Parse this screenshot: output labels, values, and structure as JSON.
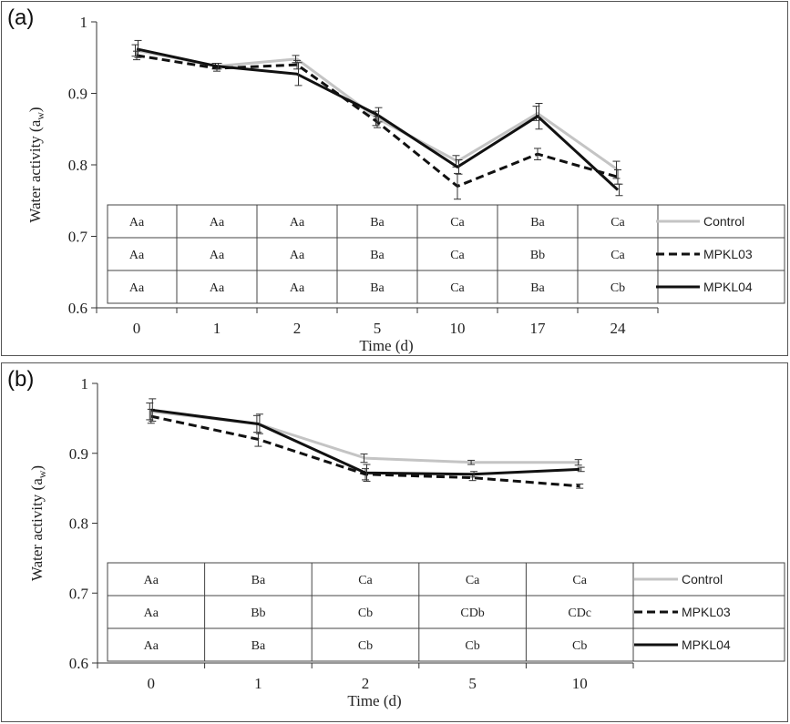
{
  "chart_data": [
    {
      "panel_label": "(a)",
      "type": "line",
      "xlabel": "Time (d)",
      "ylabel": "Water activity (a",
      "ylabel_sub": "w",
      "ylabel_end": ")",
      "categories": [
        "0",
        "1",
        "2",
        "5",
        "10",
        "17",
        "24"
      ],
      "ylim": [
        0.6,
        1.0
      ],
      "yticks": [
        "0.6",
        "0.7",
        "0.8",
        "0.9",
        "1"
      ],
      "series": [
        {
          "name": "Control",
          "color": "#c4c4c4",
          "dash": "solid",
          "values": [
            0.96,
            0.938,
            0.948,
            0.865,
            0.805,
            0.872,
            0.793
          ],
          "errors": [
            0.008,
            0.004,
            0.005,
            0.01,
            0.008,
            0.01,
            0.012
          ]
        },
        {
          "name": "MPKL03",
          "color": "#111111",
          "dash": "dashed",
          "values": [
            0.953,
            0.935,
            0.94,
            0.86,
            0.77,
            0.815,
            0.783
          ],
          "errors": [
            0.006,
            0.004,
            0.006,
            0.008,
            0.018,
            0.008,
            0.01
          ]
        },
        {
          "name": "MPKL04",
          "color": "#111111",
          "dash": "solid",
          "values": [
            0.962,
            0.938,
            0.927,
            0.87,
            0.797,
            0.868,
            0.765
          ],
          "errors": [
            0.012,
            0.004,
            0.016,
            0.01,
            0.01,
            0.018,
            0.008
          ]
        }
      ],
      "table": [
        [
          "Aa",
          "Aa",
          "Aa",
          "Ba",
          "Ca",
          "Ba",
          "Ca"
        ],
        [
          "Aa",
          "Aa",
          "Aa",
          "Ba",
          "Ca",
          "Bb",
          "Ca"
        ],
        [
          "Aa",
          "Aa",
          "Aa",
          "Ba",
          "Ca",
          "Ba",
          "Cb"
        ]
      ]
    },
    {
      "panel_label": "(b)",
      "type": "line",
      "xlabel": "Time (d)",
      "ylabel": "Water activity (a",
      "ylabel_sub": "w",
      "ylabel_end": ")",
      "categories": [
        "0",
        "1",
        "2",
        "5",
        "10"
      ],
      "ylim": [
        0.6,
        1.0
      ],
      "yticks": [
        "0.6",
        "0.7",
        "0.8",
        "0.9",
        "1"
      ],
      "series": [
        {
          "name": "Control",
          "color": "#c4c4c4",
          "dash": "solid",
          "values": [
            0.96,
            0.942,
            0.893,
            0.887,
            0.887
          ],
          "errors": [
            0.012,
            0.012,
            0.006,
            0.003,
            0.004
          ]
        },
        {
          "name": "MPKL03",
          "color": "#111111",
          "dash": "dashed",
          "values": [
            0.953,
            0.92,
            0.87,
            0.865,
            0.853
          ],
          "errors": [
            0.01,
            0.01,
            0.008,
            0.004,
            0.003
          ]
        },
        {
          "name": "MPKL04",
          "color": "#111111",
          "dash": "solid",
          "values": [
            0.962,
            0.942,
            0.872,
            0.87,
            0.877
          ],
          "errors": [
            0.016,
            0.014,
            0.012,
            0.004,
            0.003
          ]
        }
      ],
      "table": [
        [
          "Aa",
          "Ba",
          "Ca",
          "Ca",
          "Ca"
        ],
        [
          "Aa",
          "Bb",
          "Cb",
          "CDb",
          "CDc"
        ],
        [
          "Aa",
          "Ba",
          "Cb",
          "Cb",
          "Cb"
        ]
      ]
    }
  ]
}
